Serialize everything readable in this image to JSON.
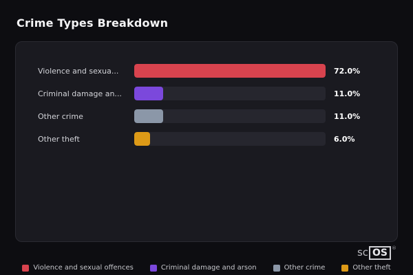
{
  "page": {
    "title": "Crime Types Breakdown"
  },
  "chart_data": {
    "type": "bar",
    "orientation": "horizontal",
    "title": "Crime Types Breakdown",
    "categories": [
      "Violence and sexual offences",
      "Criminal damage and arson",
      "Other crime",
      "Other theft"
    ],
    "values": [
      72.0,
      11.0,
      11.0,
      6.0
    ],
    "value_labels": [
      "72.0%",
      "11.0%",
      "11.0%",
      "6.0%"
    ],
    "axis_labels_truncated": [
      "Violence and sexua...",
      "Criminal damage an...",
      "Other crime",
      "Other theft"
    ],
    "colors": [
      "#d8434e",
      "#7b48dc",
      "#8b97a8",
      "#dd9a17"
    ],
    "track_color": "#26262e",
    "xlim": [
      0,
      72
    ],
    "grid": false,
    "legend_position": "bottom"
  },
  "legend": {
    "items": [
      {
        "label": "Violence and sexual offences",
        "color": "#d8434e"
      },
      {
        "label": "Criminal damage and arson",
        "color": "#7b48dc"
      },
      {
        "label": "Other crime",
        "color": "#8b97a8"
      },
      {
        "label": "Other theft",
        "color": "#dd9a17"
      }
    ]
  },
  "watermark": {
    "prefix": "sc",
    "boxed": "OS",
    "registered": "®"
  }
}
